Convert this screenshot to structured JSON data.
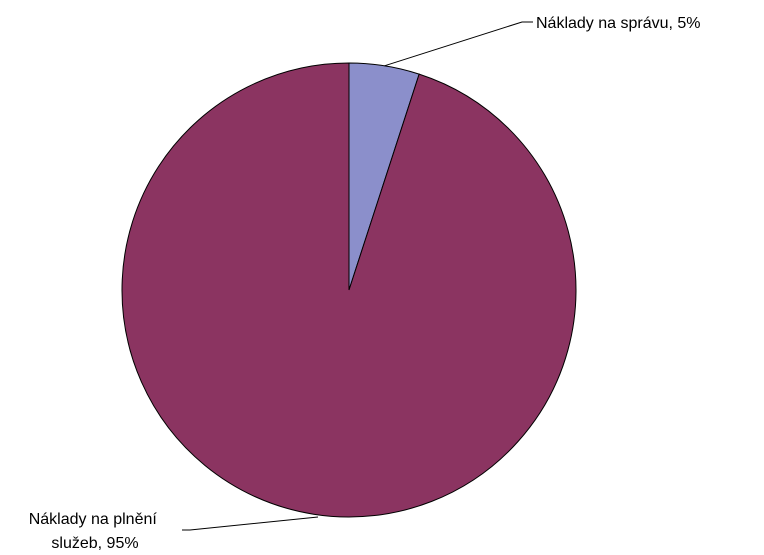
{
  "chart_data": {
    "type": "pie",
    "slices": [
      {
        "label": "Náklady na správu",
        "value": 5,
        "color": "#8b8fcb",
        "label_lines": [
          "Náklady na správu, 5%"
        ]
      },
      {
        "label": "Náklady na plnění služeb",
        "value": 95,
        "color": "#8b3461",
        "label_lines": [
          "Náklady na plnění",
          "služeb, 95%"
        ]
      }
    ],
    "start_angle": "12 o'clock",
    "direction": "clockwise",
    "legend": "none"
  }
}
